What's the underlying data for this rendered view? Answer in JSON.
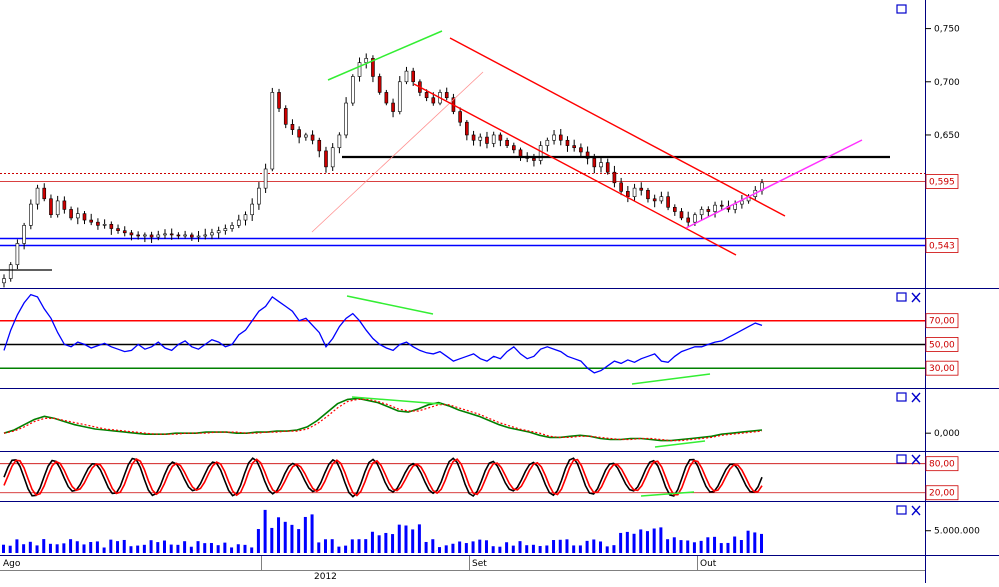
{
  "window": {
    "x_labels": {
      "ago": "Ago",
      "year": "2012",
      "set": "Set",
      "out": "Out"
    }
  },
  "chart_data": [
    {
      "type": "line",
      "panel": "price",
      "style": "candlestick",
      "ylim": [
        0.508,
        0.775
      ],
      "y_ticks": [
        {
          "value": 0.75,
          "label": "0,750"
        },
        {
          "value": 0.7,
          "label": "0,700"
        },
        {
          "value": 0.65,
          "label": "0,650"
        }
      ],
      "markers": [
        {
          "value": 0.595,
          "label": "0,595",
          "color": "#cc0000"
        },
        {
          "value": 0.543,
          "label": "0,543",
          "color": "#cc0000"
        }
      ],
      "closes": [
        0.515,
        0.528,
        0.548,
        0.565,
        0.585,
        0.6,
        0.59,
        0.575,
        0.588,
        0.58,
        0.572,
        0.576,
        0.57,
        0.568,
        0.565,
        0.566,
        0.562,
        0.56,
        0.558,
        0.556,
        0.555,
        0.556,
        0.554,
        0.556,
        0.557,
        0.556,
        0.555,
        0.556,
        0.554,
        0.555,
        0.556,
        0.558,
        0.56,
        0.562,
        0.565,
        0.57,
        0.575,
        0.585,
        0.6,
        0.618,
        0.69,
        0.675,
        0.66,
        0.655,
        0.648,
        0.65,
        0.645,
        0.635,
        0.62,
        0.638,
        0.65,
        0.68,
        0.705,
        0.718,
        0.722,
        0.705,
        0.69,
        0.68,
        0.672,
        0.7,
        0.71,
        0.7,
        0.69,
        0.685,
        0.68,
        0.69,
        0.685,
        0.672,
        0.662,
        0.65,
        0.645,
        0.648,
        0.642,
        0.65,
        0.645,
        0.64,
        0.636,
        0.63,
        0.628,
        0.626,
        0.64,
        0.645,
        0.65,
        0.645,
        0.64,
        0.638,
        0.634,
        0.628,
        0.62,
        0.624,
        0.615,
        0.605,
        0.597,
        0.592,
        0.6,
        0.598,
        0.59,
        0.588,
        0.592,
        0.582,
        0.578,
        0.572,
        0.568,
        0.575,
        0.58,
        0.578,
        0.584,
        0.583,
        0.58,
        0.585,
        0.588,
        0.592,
        0.598,
        0.605
      ]
    },
    {
      "type": "line",
      "panel": "rsi",
      "ylim": [
        15,
        95
      ],
      "levels": [
        {
          "value": 70,
          "label": "70,00",
          "color": "#ff0000"
        },
        {
          "value": 50,
          "label": "50,00",
          "color": "#000000"
        },
        {
          "value": 30,
          "label": "30,00",
          "color": "#008000"
        }
      ],
      "values": [
        45,
        62,
        75,
        85,
        92,
        90,
        80,
        72,
        60,
        50,
        48,
        52,
        50,
        47,
        49,
        51,
        48,
        46,
        44,
        45,
        50,
        46,
        48,
        52,
        47,
        45,
        50,
        53,
        48,
        46,
        50,
        54,
        52,
        48,
        50,
        58,
        62,
        70,
        78,
        82,
        90,
        86,
        82,
        78,
        70,
        72,
        66,
        60,
        48,
        55,
        65,
        72,
        76,
        70,
        62,
        55,
        50,
        47,
        45,
        50,
        52,
        48,
        45,
        43,
        42,
        44,
        40,
        36,
        38,
        40,
        42,
        38,
        36,
        40,
        38,
        44,
        48,
        42,
        38,
        40,
        46,
        48,
        46,
        44,
        40,
        38,
        36,
        30,
        26,
        28,
        32,
        36,
        34,
        37,
        35,
        38,
        40,
        42,
        36,
        35,
        40,
        44,
        46,
        48,
        48,
        50,
        52,
        53,
        56,
        59,
        62,
        65,
        68,
        66
      ]
    },
    {
      "type": "line",
      "panel": "macd",
      "ylim": [
        -0.015,
        0.04
      ],
      "y_ticks": [
        {
          "value": 0,
          "label": "0,000"
        }
      ],
      "series": [
        {
          "values": [
            0.0,
            0.003,
            0.008,
            0.013,
            0.016,
            0.014,
            0.011,
            0.008,
            0.006,
            0.004,
            0.003,
            0.002,
            0.001,
            0.0,
            -0.001,
            -0.001,
            -0.001,
            0.0,
            0.0,
            0.0,
            0.001,
            0.001,
            0.001,
            0.0,
            0.0,
            0.001,
            0.001,
            0.002,
            0.002,
            0.003,
            0.006,
            0.012,
            0.02,
            0.028,
            0.032,
            0.033,
            0.031,
            0.029,
            0.025,
            0.021,
            0.02,
            0.023,
            0.027,
            0.029,
            0.026,
            0.022,
            0.019,
            0.016,
            0.012,
            0.008,
            0.005,
            0.003,
            0.001,
            -0.002,
            -0.004,
            -0.004,
            -0.003,
            -0.002,
            -0.003,
            -0.005,
            -0.006,
            -0.006,
            -0.005,
            -0.005,
            -0.006,
            -0.007,
            -0.007,
            -0.006,
            -0.005,
            -0.004,
            -0.003,
            -0.001,
            0.0,
            0.001,
            0.002,
            0.003
          ]
        },
        {
          "values": [
            0.0,
            0.002,
            0.006,
            0.011,
            0.014,
            0.014,
            0.012,
            0.01,
            0.008,
            0.006,
            0.004,
            0.003,
            0.002,
            0.001,
            0.0,
            -0.001,
            -0.001,
            -0.001,
            0.0,
            0.0,
            0.0,
            0.001,
            0.001,
            0.001,
            0.0,
            0.0,
            0.001,
            0.001,
            0.002,
            0.002,
            0.004,
            0.009,
            0.016,
            0.024,
            0.03,
            0.032,
            0.032,
            0.03,
            0.027,
            0.023,
            0.021,
            0.021,
            0.024,
            0.027,
            0.027,
            0.024,
            0.021,
            0.018,
            0.014,
            0.01,
            0.007,
            0.004,
            0.002,
            0.0,
            -0.003,
            -0.004,
            -0.004,
            -0.003,
            -0.003,
            -0.004,
            -0.005,
            -0.006,
            -0.006,
            -0.005,
            -0.005,
            -0.006,
            -0.007,
            -0.007,
            -0.006,
            -0.005,
            -0.004,
            -0.002,
            -0.001,
            0.0,
            0.001,
            0.002
          ]
        }
      ]
    },
    {
      "type": "line",
      "panel": "stochastic",
      "ylim": [
        5,
        100
      ],
      "levels": [
        {
          "value": 80,
          "label": "80,00",
          "color": "#cc0000"
        },
        {
          "value": 20,
          "label": "20,00",
          "color": "#cc0000"
        }
      ],
      "period_count": 38
    },
    {
      "type": "bar",
      "panel": "volume",
      "ylim": [
        0,
        11000000
      ],
      "y_ticks": [
        {
          "value": 5000000,
          "label": "5.000.000"
        }
      ],
      "count": 114
    }
  ]
}
